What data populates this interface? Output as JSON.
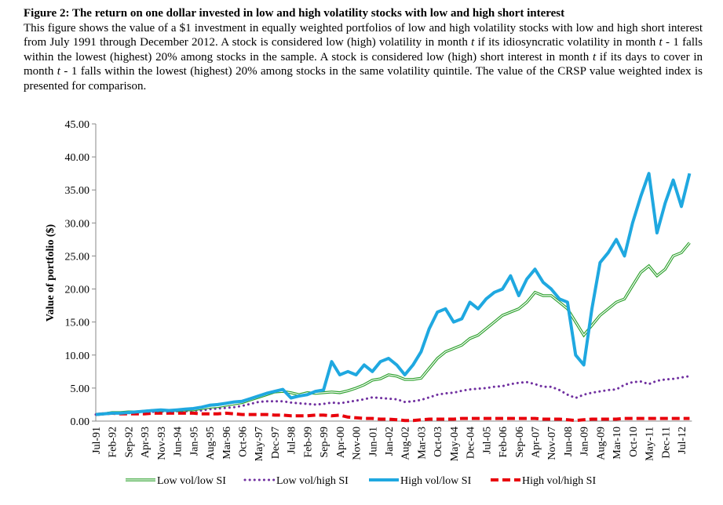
{
  "caption": {
    "title": "Figure 2: The return on one dollar invested in low and high volatility stocks with low and high short interest",
    "body": [
      "This figure shows the value of a $1 investment in equally weighted portfolios of low and high volatility stocks with low and high short interest from July 1991 through December 2012. A stock is considered low (high) volatility in month ",
      "t",
      " if its idiosyncratic volatility in month ",
      "t",
      " - 1 falls within the lowest (highest) 20% among stocks in the sample. A stock is considered low (high) short interest in month ",
      "t",
      " if its days to cover in month ",
      "t",
      " - 1 falls within the lowest (highest) 20% among stocks in the same volatility quintile. The value of the CRSP value weighted index is presented for comparison."
    ]
  },
  "chart_data": {
    "type": "line",
    "ylabel": "Value of portfolio ($)",
    "categories": [
      "Jul-91",
      null,
      "Feb-92",
      null,
      "Sep-92",
      null,
      "Apr-93",
      null,
      "Nov-93",
      null,
      "Jun-94",
      null,
      "Jan-95",
      null,
      "Aug-95",
      null,
      "Mar-96",
      null,
      "Oct-96",
      null,
      "May-97",
      null,
      "Dec-97",
      null,
      "Jul-98",
      null,
      "Feb-99",
      null,
      "Sep-99",
      null,
      "Apr-00",
      null,
      "Nov-00",
      null,
      "Jun-01",
      null,
      "Jan-02",
      null,
      "Aug-02",
      null,
      "Mar-03",
      null,
      "Oct-03",
      null,
      "May-04",
      null,
      "Dec-04",
      null,
      "Jul-05",
      null,
      "Feb-06",
      null,
      "Sep-06",
      null,
      "Apr-07",
      null,
      "Nov-07",
      null,
      "Jun-08",
      null,
      "Jan-09",
      null,
      "Aug-09",
      null,
      "Mar-10",
      null,
      "Oct-10",
      null,
      "May-11",
      null,
      "Dec-11",
      null,
      "Jul-12",
      null
    ],
    "ylim": [
      0,
      45
    ],
    "yticks": [
      {
        "value": 0,
        "label": "0.00"
      },
      {
        "value": 5,
        "label": "5.00"
      },
      {
        "value": 10,
        "label": "10.00"
      },
      {
        "value": 15,
        "label": "15.00"
      },
      {
        "value": 20,
        "label": "20.00"
      },
      {
        "value": 25,
        "label": "25.00"
      },
      {
        "value": 30,
        "label": "30.00"
      },
      {
        "value": 35,
        "label": "35.00"
      },
      {
        "value": 40,
        "label": "40.00"
      },
      {
        "value": 45,
        "label": "45.00"
      }
    ],
    "series": [
      {
        "name": "Low vol/low SI",
        "color": "#2ca02c",
        "style": "double",
        "values": [
          1.0,
          1.1,
          1.3,
          1.3,
          1.4,
          1.4,
          1.5,
          1.6,
          1.6,
          1.6,
          1.6,
          1.7,
          1.7,
          1.9,
          2.1,
          2.2,
          2.4,
          2.6,
          2.8,
          3.2,
          3.6,
          4.0,
          4.4,
          4.5,
          4.3,
          4.0,
          4.3,
          4.2,
          4.3,
          4.4,
          4.3,
          4.6,
          5.0,
          5.5,
          6.2,
          6.4,
          7.0,
          6.8,
          6.3,
          6.3,
          6.5,
          8.0,
          9.5,
          10.5,
          11.0,
          11.5,
          12.5,
          13.0,
          14.0,
          15.0,
          16.0,
          16.5,
          17.0,
          18.0,
          19.5,
          19.0,
          19.0,
          18.0,
          17.0,
          15.0,
          13.0,
          14.5,
          16.0,
          17.0,
          18.0,
          18.5,
          20.5,
          22.5,
          23.5,
          22.0,
          23.0,
          25.0,
          25.5,
          27.0
        ]
      },
      {
        "name": "Low vol/high SI",
        "color": "#7030a0",
        "style": "dotted",
        "values": [
          1.0,
          1.1,
          1.2,
          1.2,
          1.2,
          1.3,
          1.4,
          1.4,
          1.5,
          1.4,
          1.5,
          1.5,
          1.6,
          1.6,
          1.8,
          1.9,
          2.0,
          2.1,
          2.3,
          2.6,
          2.9,
          3.0,
          3.0,
          3.0,
          2.8,
          2.7,
          2.6,
          2.5,
          2.6,
          2.8,
          2.7,
          2.9,
          3.1,
          3.3,
          3.6,
          3.5,
          3.4,
          3.3,
          2.9,
          3.0,
          3.2,
          3.6,
          4.0,
          4.2,
          4.3,
          4.6,
          4.8,
          4.9,
          5.0,
          5.2,
          5.3,
          5.6,
          5.8,
          5.9,
          5.6,
          5.2,
          5.2,
          4.7,
          4.0,
          3.5,
          4.0,
          4.3,
          4.5,
          4.7,
          4.8,
          5.5,
          5.9,
          6.0,
          5.6,
          6.1,
          6.3,
          6.4,
          6.6,
          6.8
        ]
      },
      {
        "name": "High vol/low SI",
        "color": "#1fa8e0",
        "style": "thick",
        "values": [
          1.0,
          1.1,
          1.2,
          1.2,
          1.3,
          1.4,
          1.5,
          1.6,
          1.7,
          1.6,
          1.7,
          1.8,
          1.9,
          2.1,
          2.4,
          2.5,
          2.7,
          2.9,
          3.0,
          3.4,
          3.8,
          4.2,
          4.5,
          4.8,
          3.5,
          3.8,
          4.0,
          4.5,
          4.7,
          9.0,
          7.0,
          7.5,
          7.0,
          8.5,
          7.5,
          9.0,
          9.5,
          8.5,
          7.0,
          8.5,
          10.5,
          14.0,
          16.5,
          17.0,
          15.0,
          15.5,
          18.0,
          17.0,
          18.5,
          19.5,
          20.0,
          22.0,
          19.0,
          21.5,
          23.0,
          21.0,
          20.0,
          18.5,
          18.0,
          10.0,
          8.5,
          17.0,
          24.0,
          25.5,
          27.5,
          25.0,
          30.0,
          34.0,
          37.5,
          28.5,
          33.0,
          36.5,
          32.5,
          37.5
        ]
      },
      {
        "name": "High vol/high SI",
        "color": "#e8000b",
        "style": "dashed",
        "values": [
          1.0,
          1.1,
          1.2,
          1.1,
          1.1,
          1.1,
          1.1,
          1.2,
          1.2,
          1.2,
          1.2,
          1.2,
          1.2,
          1.1,
          1.1,
          1.1,
          1.2,
          1.1,
          1.0,
          1.0,
          1.0,
          1.0,
          0.9,
          0.9,
          0.8,
          0.8,
          0.8,
          0.9,
          0.9,
          0.8,
          0.9,
          0.6,
          0.5,
          0.4,
          0.4,
          0.3,
          0.3,
          0.2,
          0.1,
          0.1,
          0.2,
          0.3,
          0.3,
          0.3,
          0.3,
          0.4,
          0.4,
          0.4,
          0.4,
          0.4,
          0.4,
          0.4,
          0.4,
          0.4,
          0.4,
          0.3,
          0.3,
          0.3,
          0.2,
          0.1,
          0.2,
          0.3,
          0.3,
          0.3,
          0.3,
          0.4,
          0.4,
          0.4,
          0.4,
          0.4,
          0.4,
          0.4,
          0.4,
          0.4
        ]
      }
    ]
  }
}
